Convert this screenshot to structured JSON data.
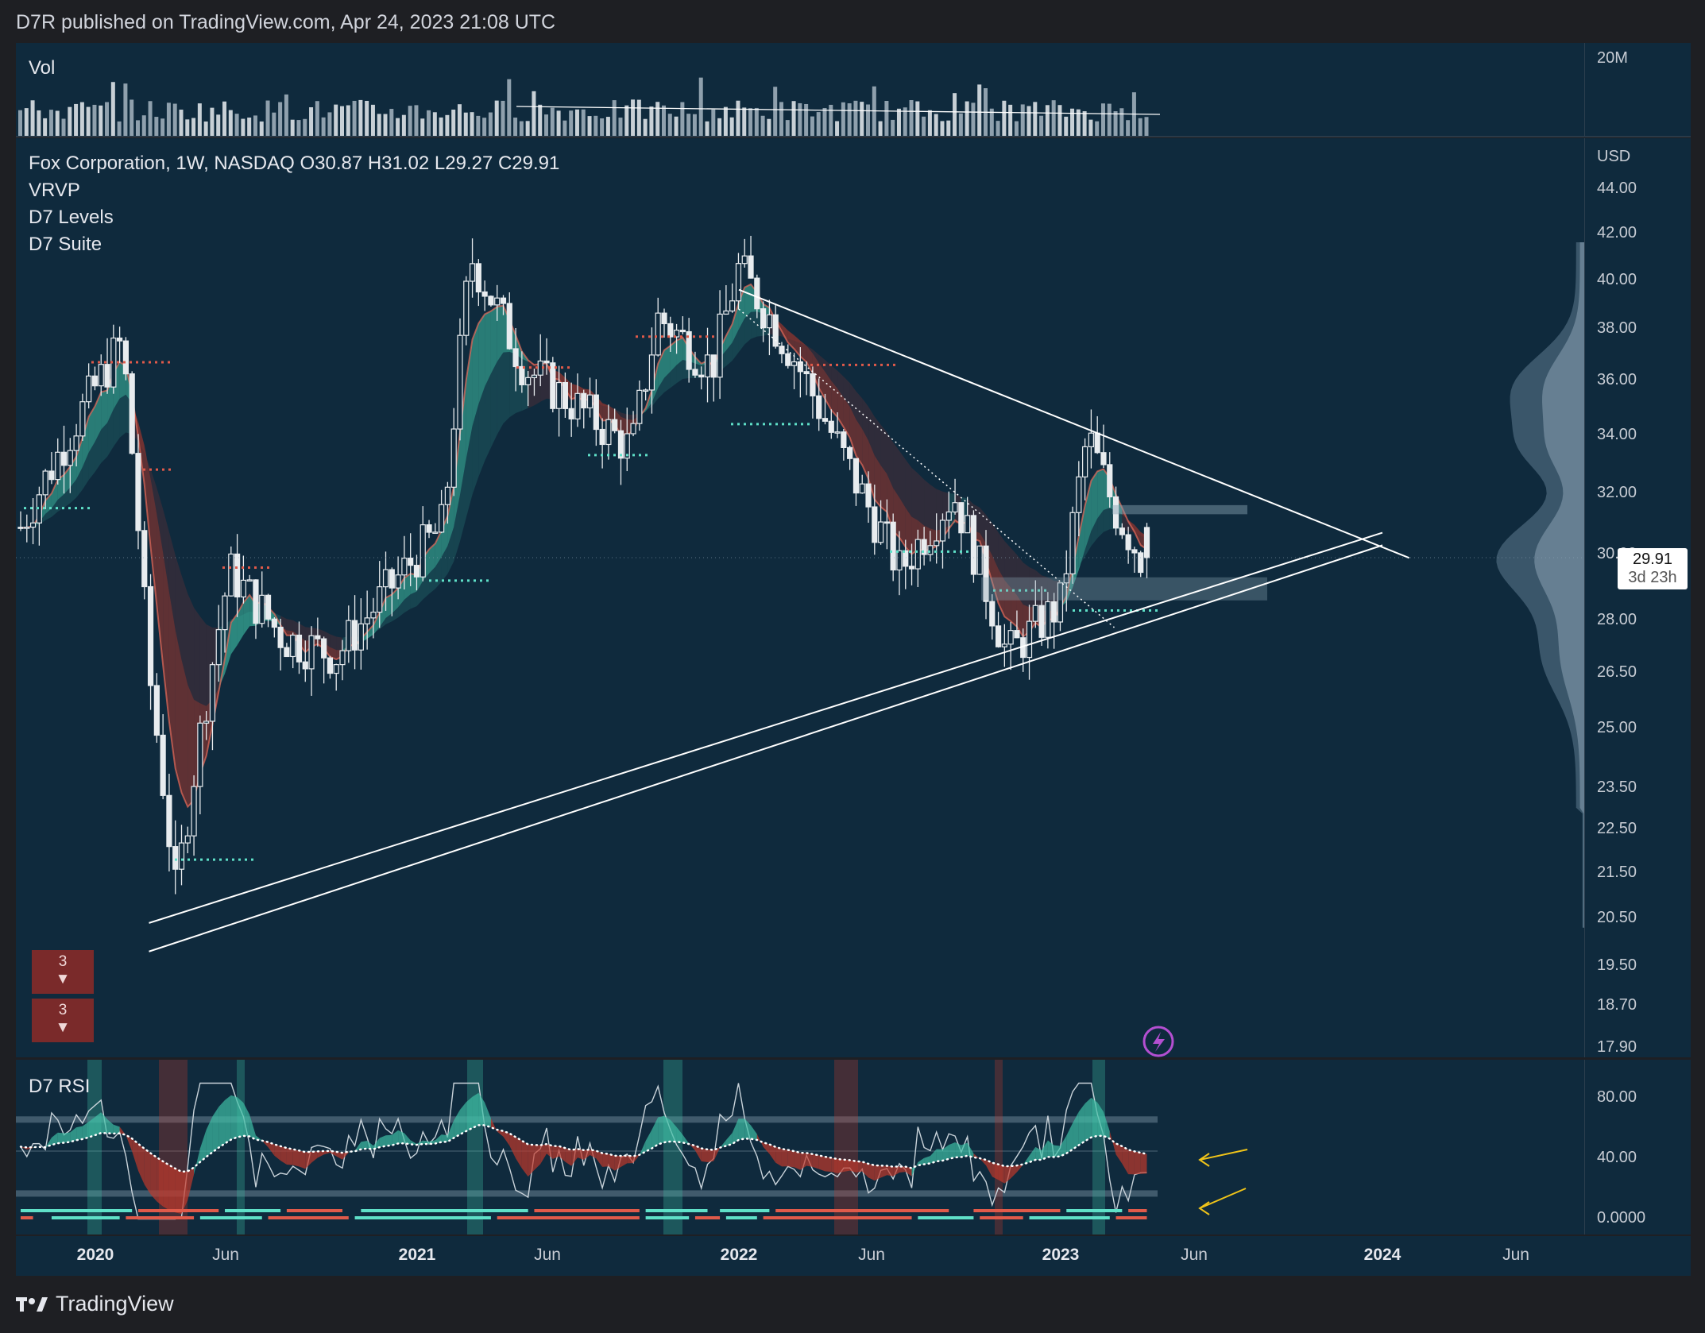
{
  "header": {
    "publisher_line": "D7R published on TradingView.com, Apr 24, 2023 21:08 UTC"
  },
  "volume_panel": {
    "label": "Vol",
    "scale_tick": "20M"
  },
  "main_panel": {
    "title_line": "Fox Corporation, 1W, NASDAQ  O30.87  H31.02  L29.27  C29.91",
    "indicators": [
      "VRVP",
      "D7 Levels",
      "D7 Suite"
    ],
    "currency": "USD",
    "price_ticks": [
      "44.00",
      "42.00",
      "40.00",
      "38.00",
      "36.00",
      "34.00",
      "32.00",
      "30.00",
      "28.00",
      "26.50",
      "25.00",
      "23.50",
      "22.50",
      "21.50",
      "20.50",
      "19.50",
      "18.70",
      "17.90"
    ],
    "last_price": "29.91",
    "countdown": "3d 23h",
    "alerts": [
      {
        "count": "3",
        "arrow": "▼"
      },
      {
        "count": "3",
        "arrow": "▼"
      }
    ],
    "lightning_icon": "lightning-bolt-icon"
  },
  "rsi_panel": {
    "label": "D7 RSI",
    "ticks": [
      "80.00",
      "40.00",
      "0.0000"
    ]
  },
  "x_axis": {
    "labels": [
      {
        "text": "2020",
        "year": true
      },
      {
        "text": "Jun",
        "year": false
      },
      {
        "text": "2021",
        "year": true
      },
      {
        "text": "Jun",
        "year": false
      },
      {
        "text": "2022",
        "year": true
      },
      {
        "text": "Jun",
        "year": false
      },
      {
        "text": "2023",
        "year": true
      },
      {
        "text": "Jun",
        "year": false
      },
      {
        "text": "2024",
        "year": true
      },
      {
        "text": "Jun",
        "year": false
      }
    ]
  },
  "footer": {
    "brand": "TradingView",
    "logo_icon": "tradingview-logo-icon"
  },
  "colors": {
    "background": "#0f2a3d",
    "bull_band": "#3fbfa5",
    "bear_band": "#c0392b",
    "candle": "#e8ecef",
    "alert_bg": "#7a2a2a",
    "annotation_arrow": "#f0c419"
  },
  "chart_data": {
    "type": "candlestick",
    "title": "Fox Corporation, 1W, NASDAQ",
    "ylabel": "USD",
    "y_scale": "log",
    "ylim": [
      17.9,
      44.0
    ],
    "x_range": [
      "2019-10",
      "2024-09"
    ],
    "ohlc_last": {
      "open": 30.87,
      "high": 31.02,
      "low": 29.27,
      "close": 29.91
    },
    "close_path": {
      "x": [
        "2019-10",
        "2019-12",
        "2020-02",
        "2020-03",
        "2020-04",
        "2020-06",
        "2020-08",
        "2020-10",
        "2020-12",
        "2021-02",
        "2021-03",
        "2021-05",
        "2021-07",
        "2021-09",
        "2021-10",
        "2021-12",
        "2022-01",
        "2022-03",
        "2022-05",
        "2022-07",
        "2022-09",
        "2022-11",
        "2023-01",
        "2023-02",
        "2023-03",
        "2023-04"
      ],
      "values": [
        30.5,
        34.0,
        37.5,
        26.5,
        21.0,
        29.5,
        27.5,
        27.0,
        29.0,
        31.0,
        41.0,
        36.5,
        35.0,
        33.5,
        38.5,
        36.5,
        40.5,
        37.0,
        33.0,
        29.5,
        32.0,
        27.0,
        28.5,
        34.0,
        31.5,
        29.91
      ]
    },
    "trendlines": [
      {
        "name": "upper-resistance",
        "from": {
          "x": "2022-01",
          "y": 39.6
        },
        "to": {
          "x": "2024-02",
          "y": 29.9
        }
      },
      {
        "name": "lower-support-1",
        "from": {
          "x": "2020-03",
          "y": 20.4
        },
        "to": {
          "x": "2024-01",
          "y": 30.7
        }
      },
      {
        "name": "lower-support-2",
        "from": {
          "x": "2020-03",
          "y": 19.8
        },
        "to": {
          "x": "2024-01",
          "y": 30.3
        }
      }
    ],
    "rsi": {
      "overbought": 70,
      "oversold": 20,
      "midline": 50,
      "last": 40
    }
  }
}
